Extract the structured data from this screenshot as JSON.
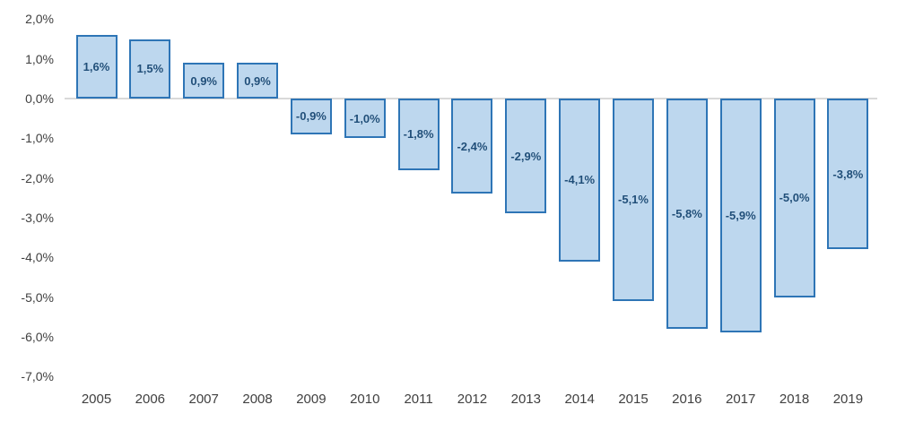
{
  "chart_data": {
    "type": "bar",
    "title": "",
    "xlabel": "",
    "ylabel": "",
    "categories": [
      "2005",
      "2006",
      "2007",
      "2008",
      "2009",
      "2010",
      "2011",
      "2012",
      "2013",
      "2014",
      "2015",
      "2016",
      "2017",
      "2018",
      "2019"
    ],
    "values": [
      1.6,
      1.5,
      0.9,
      0.9,
      -0.9,
      -1.0,
      -1.8,
      -2.4,
      -2.9,
      -4.1,
      -5.1,
      -5.8,
      -5.9,
      -5.0,
      -3.8
    ],
    "data_labels": [
      "1,6%",
      "1,5%",
      "0,9%",
      "0,9%",
      "-0,9%",
      "-1,0%",
      "-1,8%",
      "-2,4%",
      "-2,9%",
      "-4,1%",
      "-5,1%",
      "-5,8%",
      "-5,9%",
      "-5,0%",
      "-3,8%"
    ],
    "data_label_position": "center",
    "y_ticks": [
      {
        "label": "2,0%",
        "value": 2.0
      },
      {
        "label": "1,0%",
        "value": 1.0
      },
      {
        "label": "0,0%",
        "value": 0.0
      },
      {
        "label": "-1,0%",
        "value": -1.0
      },
      {
        "label": "-2,0%",
        "value": -2.0
      },
      {
        "label": "-3,0%",
        "value": -3.0
      },
      {
        "label": "-4,0%",
        "value": -4.0
      },
      {
        "label": "-5,0%",
        "value": -5.0
      },
      {
        "label": "-6,0%",
        "value": -6.0
      },
      {
        "label": "-7,0%",
        "value": -7.0
      }
    ],
    "ylim": [
      -7.0,
      2.0
    ],
    "grid": false,
    "legend": "none",
    "colors": {
      "bar_fill": "#bdd7ee",
      "bar_border": "#2e75b6",
      "data_label": "#1f4e79",
      "axis_text": "#404040",
      "zero_line": "#d9d9d9",
      "background": "#ffffff"
    }
  }
}
